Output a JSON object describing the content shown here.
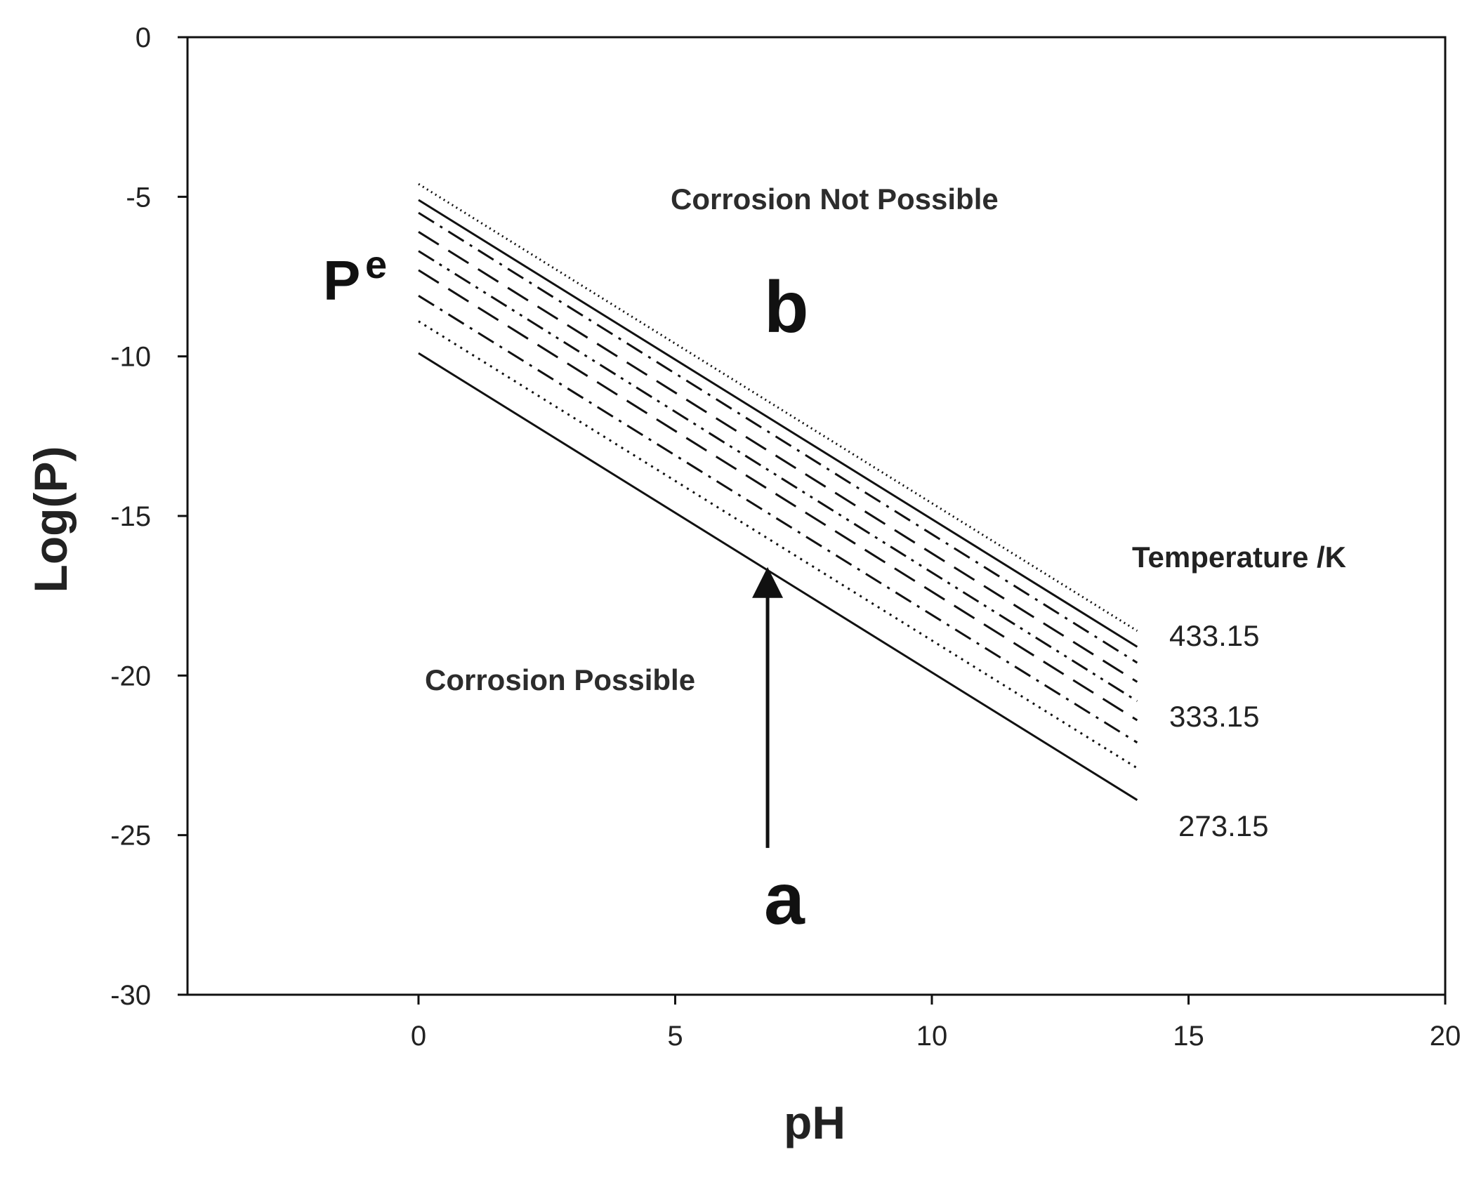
{
  "colors": {
    "ink": "#111111",
    "background": "#ffffff"
  },
  "chart_data": {
    "type": "line",
    "title": "",
    "xlabel": "pH",
    "ylabel": "Log(P)",
    "xlim": [
      -4.5,
      20
    ],
    "ylim": [
      -30,
      0
    ],
    "xticks": [
      0,
      5,
      10,
      15,
      20
    ],
    "yticks": [
      0,
      -5,
      -10,
      -15,
      -20,
      -25,
      -30
    ],
    "x_range_of_lines": [
      0,
      14
    ],
    "series": [
      {
        "name": "433.15",
        "x": [
          0,
          14
        ],
        "y": [
          -4.6,
          -18.6
        ],
        "dash": "dotted-fine"
      },
      {
        "x": [
          0,
          14
        ],
        "y": [
          -5.1,
          -19.1
        ],
        "dash": "solid"
      },
      {
        "x": [
          0,
          14
        ],
        "y": [
          -5.5,
          -19.6
        ],
        "dash": "dash-dot"
      },
      {
        "x": [
          0,
          14
        ],
        "y": [
          -6.1,
          -20.2
        ],
        "dash": "long-dash"
      },
      {
        "x": [
          0,
          14
        ],
        "y": [
          -6.7,
          -20.8
        ],
        "dash": "dash-dot-dot"
      },
      {
        "name": "333.15",
        "x": [
          0,
          14
        ],
        "y": [
          -7.3,
          -21.4
        ],
        "dash": "long-dash"
      },
      {
        "x": [
          0,
          14
        ],
        "y": [
          -8.1,
          -22.1
        ],
        "dash": "dash-dot"
      },
      {
        "x": [
          0,
          14
        ],
        "y": [
          -8.9,
          -22.9
        ],
        "dash": "dotted"
      },
      {
        "name": "273.15",
        "x": [
          0,
          14
        ],
        "y": [
          -9.9,
          -23.9
        ],
        "dash": "solid"
      }
    ],
    "legend": {
      "title": "Temperature /K",
      "placement": "right",
      "entries": [
        "433.15",
        "333.15",
        "273.15"
      ]
    },
    "annotations": {
      "region_above": "Corrosion Not Possible",
      "region_below": "Corrosion Possible",
      "point_above": "b",
      "point_below": "a",
      "line_label": "P",
      "line_label_sup": "e",
      "arrow": {
        "x": 6.8,
        "y_from": -25.4,
        "y_to": -16.6
      }
    }
  }
}
